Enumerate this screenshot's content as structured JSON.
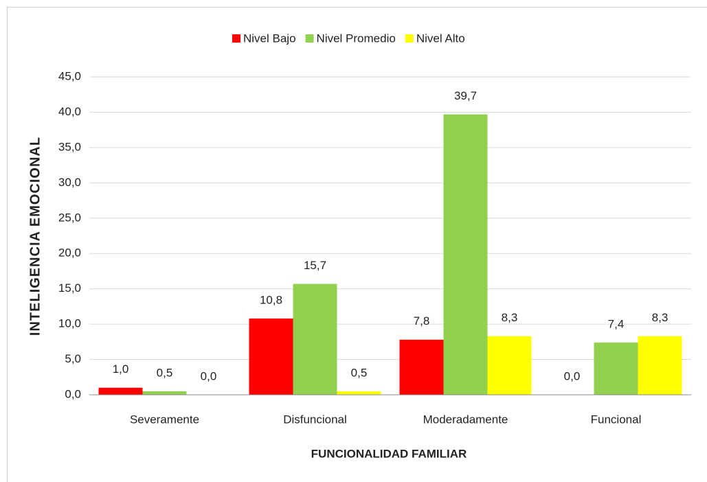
{
  "chart_data": {
    "type": "bar",
    "x_label": "FUNCIONALIDAD FAMILIAR",
    "y_label": "INTELIGENCIA EMOCIONAL",
    "categories": [
      "Severamente",
      "Disfuncional",
      "Moderadamente",
      "Funcional"
    ],
    "series": [
      {
        "name": "Nivel Bajo",
        "color": "#ff0000",
        "values": [
          1.0,
          10.8,
          7.8,
          0.0
        ],
        "value_labels": [
          "1,0",
          "10,8",
          "7,8",
          "0,0"
        ]
      },
      {
        "name": "Nivel Promedio",
        "color": "#92d050",
        "values": [
          0.5,
          15.7,
          39.7,
          7.4
        ],
        "value_labels": [
          "0,5",
          "15,7",
          "39,7",
          "7,4"
        ]
      },
      {
        "name": "Nivel Alto",
        "color": "#ffff00",
        "values": [
          0.0,
          0.5,
          8.3,
          8.3
        ],
        "value_labels": [
          "0,0",
          "0,5",
          "8,3",
          "8,3"
        ]
      }
    ],
    "ylim": [
      0,
      45
    ],
    "yticks": [
      {
        "value": 0,
        "label": "0,0"
      },
      {
        "value": 5,
        "label": "5,0"
      },
      {
        "value": 10,
        "label": "10,0"
      },
      {
        "value": 15,
        "label": "15,0"
      },
      {
        "value": 20,
        "label": "20,0"
      },
      {
        "value": 25,
        "label": "25,0"
      },
      {
        "value": 30,
        "label": "30,0"
      },
      {
        "value": 35,
        "label": "35,0"
      },
      {
        "value": 40,
        "label": "40,0"
      },
      {
        "value": 45,
        "label": "45,0"
      }
    ],
    "grid": true,
    "legend": "top"
  }
}
